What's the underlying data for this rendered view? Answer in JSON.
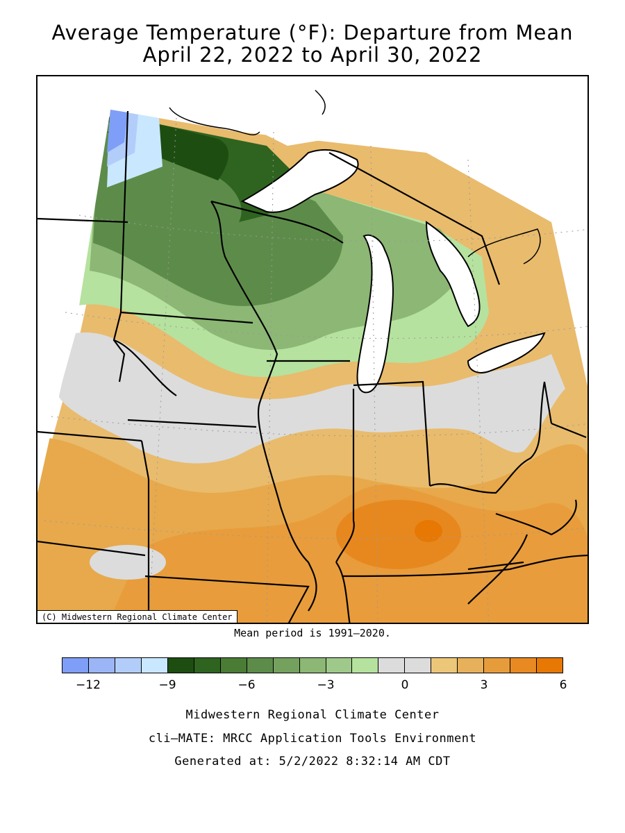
{
  "title": {
    "line1": "Average Temperature (°F): Departure from Mean",
    "line2": "April 22, 2022 to April 30, 2022"
  },
  "map": {
    "copyright": "(C) Midwestern Regional Climate Center"
  },
  "mean_period": "Mean period is 1991–2020.",
  "legend": {
    "colors": [
      "#7f9ef7",
      "#9cb5f7",
      "#b3cdfb",
      "#c9e8ff",
      "#1e4d12",
      "#2f6420",
      "#4a7c36",
      "#5d8c4a",
      "#74a25e",
      "#8cb775",
      "#9fc98a",
      "#b5e29e",
      "#dcdcdc",
      "#dcdcdc",
      "#ecc77a",
      "#e7b05a",
      "#e79c3c",
      "#e88a21",
      "#e67803"
    ],
    "labels": [
      "−12",
      "−9",
      "−6",
      "−3",
      "0",
      "3",
      "6"
    ]
  },
  "footer": {
    "line1": "Midwestern Regional Climate Center",
    "line2": "cli–MATE: MRCC Application Tools Environment",
    "line3": "Generated at: 5/2/2022 8:32:14 AM CDT"
  }
}
